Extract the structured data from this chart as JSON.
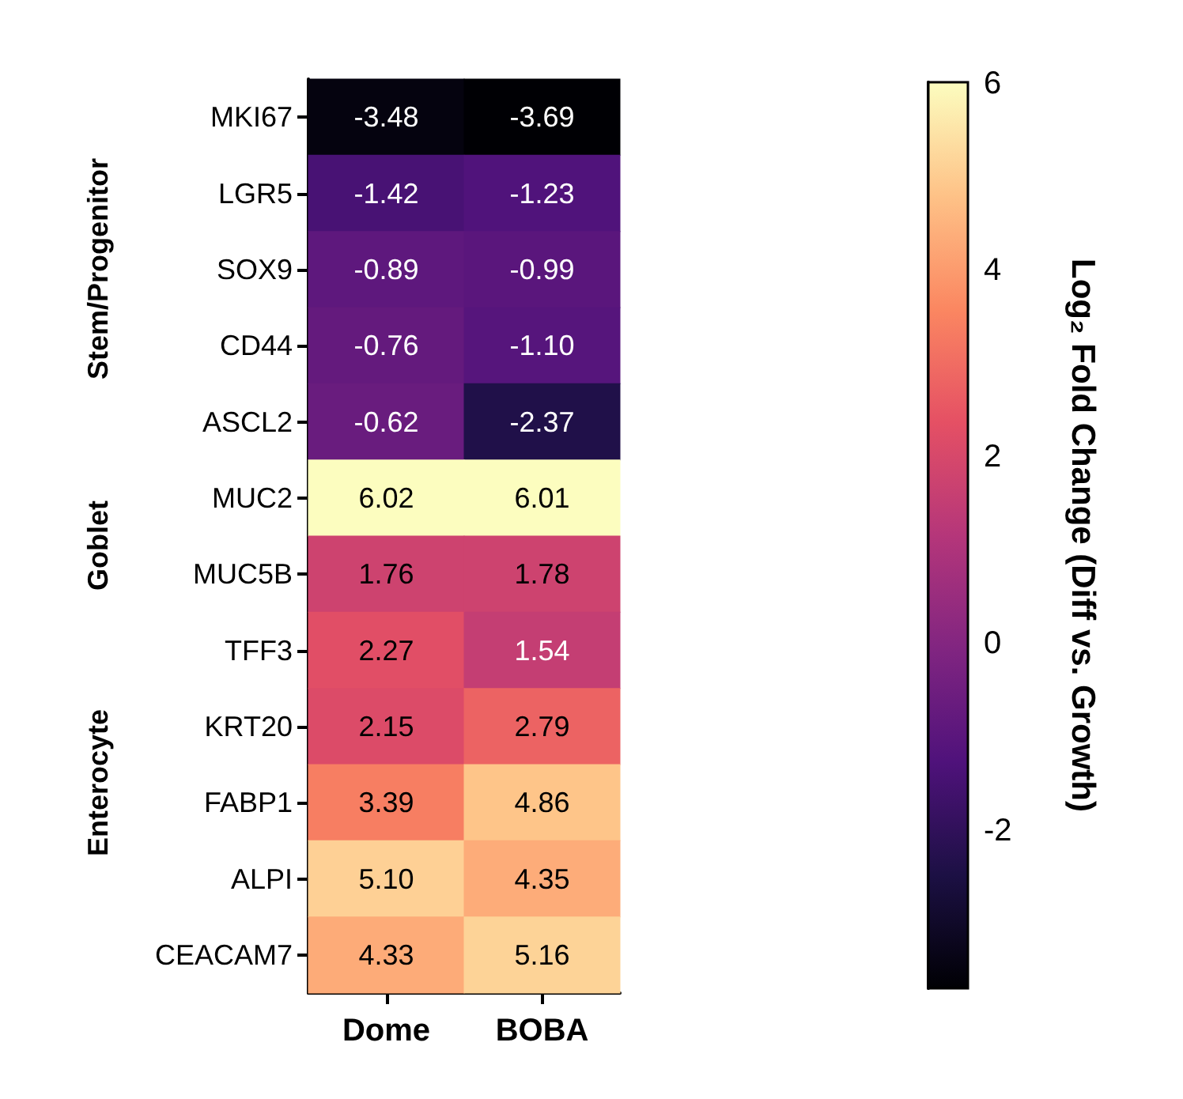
{
  "chart_data": {
    "type": "heatmap",
    "categories": [
      "Dome",
      "BOBA"
    ],
    "y_categories": [
      "MKI67",
      "LGR5",
      "SOX9",
      "CD44",
      "ASCL2",
      "MUC2",
      "MUC5B",
      "TFF3",
      "KRT20",
      "FABP1",
      "ALPI",
      "CEACAM7"
    ],
    "cells": [
      [
        -3.48,
        -3.69
      ],
      [
        -1.42,
        -1.23
      ],
      [
        -0.89,
        -0.99
      ],
      [
        -0.76,
        -1.1
      ],
      [
        -0.62,
        -2.37
      ],
      [
        6.02,
        6.01
      ],
      [
        1.76,
        1.78
      ],
      [
        2.27,
        1.54
      ],
      [
        2.15,
        2.79
      ],
      [
        3.39,
        4.86
      ],
      [
        5.1,
        4.35
      ],
      [
        4.33,
        5.16
      ]
    ],
    "cell_labels": [
      [
        "-3.48",
        "-3.69"
      ],
      [
        "-1.42",
        "-1.23"
      ],
      [
        "-0.89",
        "-0.99"
      ],
      [
        "-0.76",
        "-1.10"
      ],
      [
        "-0.62",
        "-2.37"
      ],
      [
        "6.02",
        "6.01"
      ],
      [
        "1.76",
        "1.78"
      ],
      [
        "2.27",
        "1.54"
      ],
      [
        "2.15",
        "2.79"
      ],
      [
        "3.39",
        "4.86"
      ],
      [
        "5.10",
        "4.35"
      ],
      [
        "4.33",
        "5.16"
      ]
    ],
    "clim": [
      -3.69,
      6.02
    ],
    "cticks": [
      -2,
      0,
      2,
      4,
      6
    ],
    "clabel": "Log₂ Fold Change (Diff vs. Growth)",
    "annotations": [
      "Stem/Progenitor",
      "Goblet",
      "Enterocyte"
    ]
  }
}
